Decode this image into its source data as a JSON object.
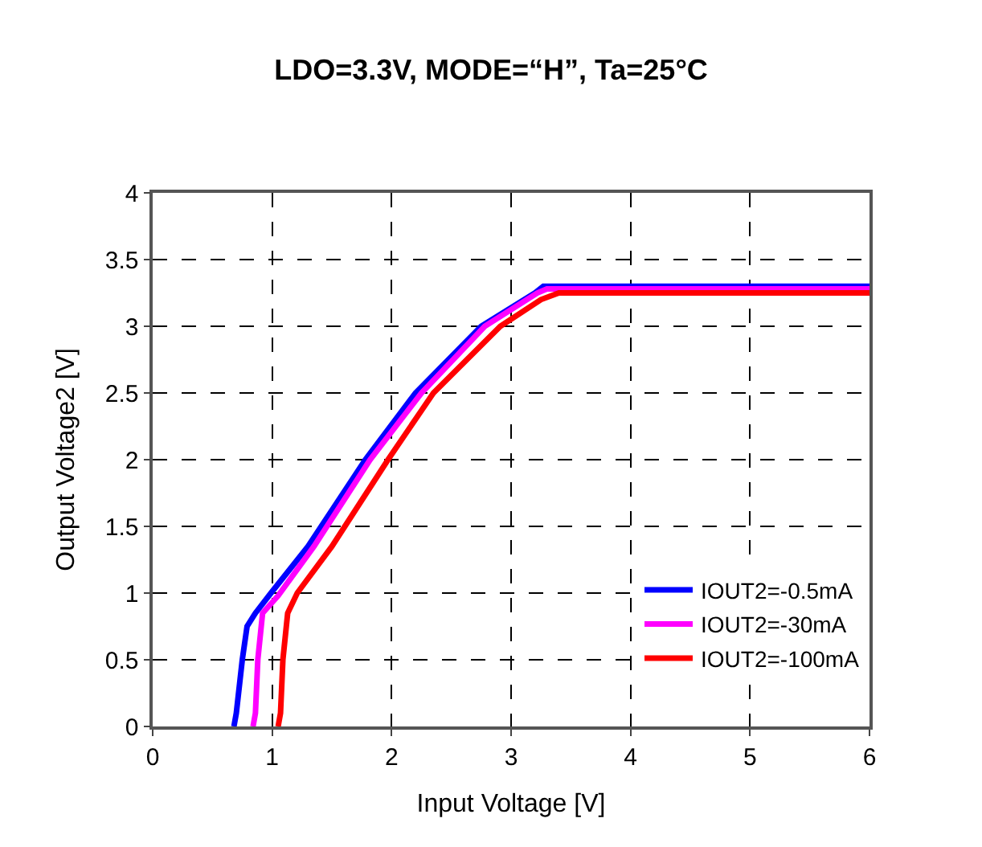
{
  "chart_data": {
    "type": "line",
    "title": "LDO=3.3V, MODE=“H”, Ta=25°C",
    "xlabel": "Input Voltage [V]",
    "ylabel": "Output Voltage2 [V]",
    "xlim": [
      0,
      6
    ],
    "ylim": [
      0,
      4
    ],
    "xticks": [
      0,
      1,
      2,
      3,
      4,
      5,
      6
    ],
    "yticks": [
      0,
      0.5,
      1,
      1.5,
      2,
      2.5,
      3,
      3.5,
      4
    ],
    "grid": true,
    "legend": "bottom right",
    "line_style": "solid",
    "marker": "none",
    "series": [
      {
        "name": "IOUT2=-0.5mA",
        "color": "#0000ff",
        "x": [
          0.68,
          0.7,
          0.75,
          0.79,
          0.86,
          0.99,
          1.3,
          1.78,
          2.2,
          2.75,
          3.2,
          3.27,
          4,
          5,
          6
        ],
        "values": [
          0,
          0.1,
          0.5,
          0.75,
          0.85,
          1.0,
          1.35,
          2.0,
          2.5,
          3.0,
          3.25,
          3.3,
          3.3,
          3.3,
          3.3
        ]
      },
      {
        "name": "IOUT2=-30mA",
        "color": "#ff00ff",
        "x": [
          0.84,
          0.86,
          0.88,
          0.92,
          1.05,
          1.35,
          1.82,
          2.25,
          2.78,
          3.22,
          3.3,
          4,
          5,
          6
        ],
        "values": [
          0,
          0.1,
          0.5,
          0.85,
          0.98,
          1.35,
          2.0,
          2.5,
          3.0,
          3.25,
          3.28,
          3.28,
          3.28,
          3.28
        ]
      },
      {
        "name": "IOUT2=-100mA",
        "color": "#ff0000",
        "x": [
          1.05,
          1.07,
          1.09,
          1.13,
          1.21,
          1.5,
          1.97,
          2.35,
          2.91,
          3.25,
          3.4,
          4,
          5,
          6
        ],
        "values": [
          0,
          0.1,
          0.5,
          0.85,
          1.0,
          1.35,
          2.0,
          2.5,
          3.0,
          3.2,
          3.25,
          3.25,
          3.25,
          3.25
        ]
      }
    ]
  }
}
